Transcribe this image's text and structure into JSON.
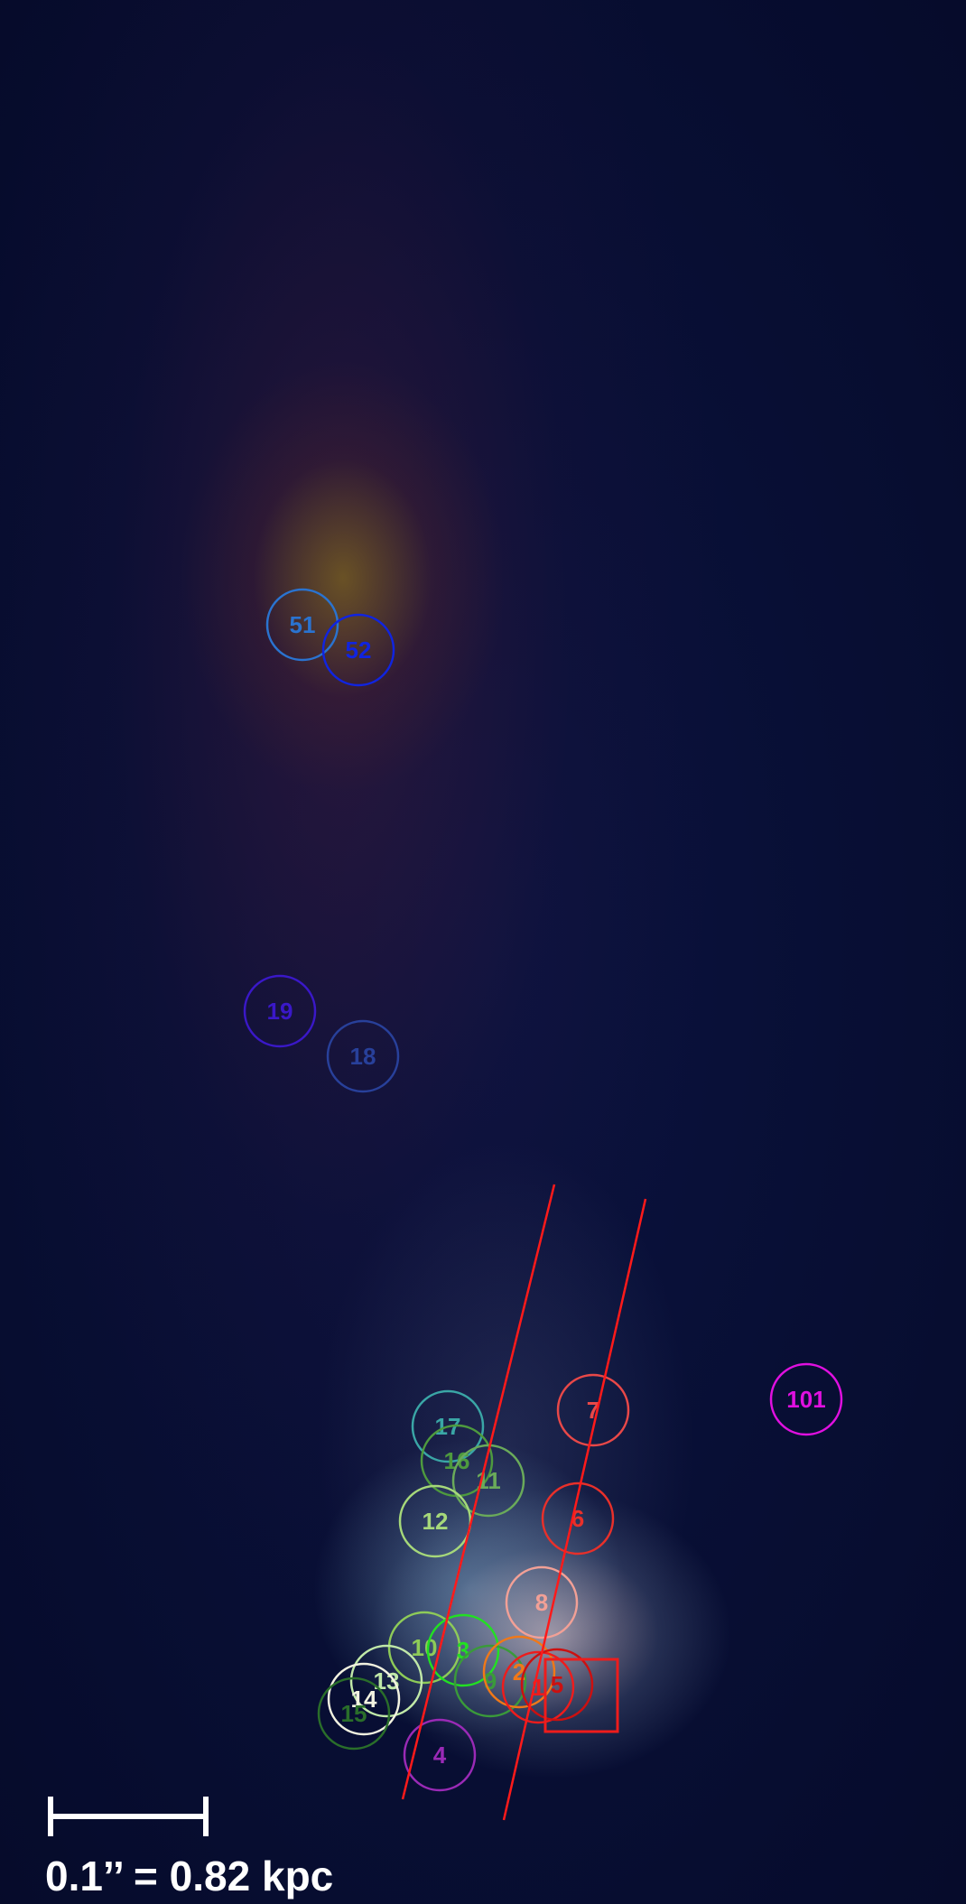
{
  "scale_label": "0.1’’ = 0.82 kpc",
  "regions": [
    {
      "label": "51",
      "color": "#2a73d0"
    },
    {
      "label": "52",
      "color": "#1024e0"
    },
    {
      "label": "19",
      "color": "#3a18c8"
    },
    {
      "label": "18",
      "color": "#28409a"
    },
    {
      "label": "101",
      "color": "#e010e0"
    },
    {
      "label": "7",
      "color": "#e84848"
    },
    {
      "label": "17",
      "color": "#3aa6a6"
    },
    {
      "label": "16",
      "color": "#4e9a3e"
    },
    {
      "label": "11",
      "color": "#6aaa5a"
    },
    {
      "label": "12",
      "color": "#a6d87a"
    },
    {
      "label": "6",
      "color": "#e8302a"
    },
    {
      "label": "8",
      "color": "#f2a096"
    },
    {
      "label": "10",
      "color": "#8ecb58"
    },
    {
      "label": "3",
      "color": "#22e022"
    },
    {
      "label": "13",
      "color": "#c0e8a8"
    },
    {
      "label": "14",
      "color": "#f2f2e0"
    },
    {
      "label": "15",
      "color": "#2a6e2a"
    },
    {
      "label": "9",
      "color": "#3a9a3a"
    },
    {
      "label": "2",
      "color": "#f07818"
    },
    {
      "label": "1",
      "color": "#ee1c1c"
    },
    {
      "label": "5",
      "color": "#cc1010"
    },
    {
      "label": "4",
      "color": "#9a2ab6"
    }
  ],
  "marker_box": {
    "color": "#ee1c1c"
  },
  "slit_color": "#ff1a1a"
}
